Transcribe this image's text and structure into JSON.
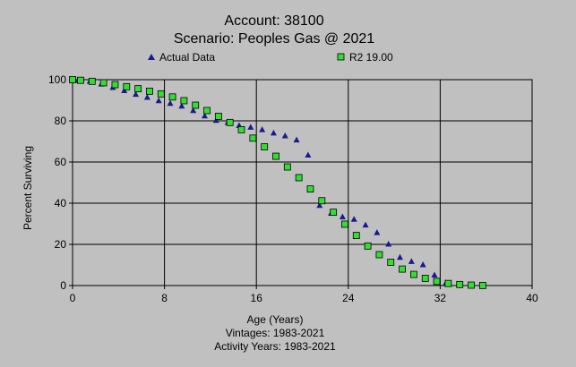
{
  "chart_data": {
    "type": "scatter",
    "title": "Account: 38100",
    "subtitle": "Scenario: Peoples Gas @ 2021",
    "xlabel": "Age (Years)",
    "ylabel": "Percent Surviving",
    "footer_lines": [
      "Vintages: 1983-2021",
      "Activity Years: 1983-2021"
    ],
    "xlim": [
      0,
      40
    ],
    "ylim": [
      0,
      100
    ],
    "x_ticks": [
      0,
      8,
      16,
      24,
      32,
      40
    ],
    "y_ticks": [
      0,
      20,
      40,
      60,
      80,
      100
    ],
    "grid": true,
    "legend_position": "top",
    "series": [
      {
        "name": "Actual Data",
        "marker": "triangle",
        "color": "#1a1a8c",
        "points": [
          [
            0.5,
            99.8
          ],
          [
            1.5,
            99.3
          ],
          [
            2.5,
            98.0
          ],
          [
            3.5,
            96.3
          ],
          [
            4.5,
            94.8
          ],
          [
            5.5,
            93.0
          ],
          [
            6.5,
            91.5
          ],
          [
            7.5,
            89.9
          ],
          [
            8.5,
            88.6
          ],
          [
            9.5,
            87.3
          ],
          [
            10.5,
            85.1
          ],
          [
            11.5,
            82.5
          ],
          [
            12.5,
            80.3
          ],
          [
            13.5,
            79.3
          ],
          [
            14.5,
            77.8
          ],
          [
            15.5,
            77.0
          ],
          [
            16.5,
            75.8
          ],
          [
            17.5,
            74.2
          ],
          [
            18.5,
            72.8
          ],
          [
            19.5,
            70.8
          ],
          [
            20.5,
            63.5
          ],
          [
            21.5,
            39.0
          ],
          [
            22.5,
            35.2
          ],
          [
            23.5,
            33.5
          ],
          [
            24.5,
            32.3
          ],
          [
            25.5,
            29.5
          ],
          [
            26.5,
            25.8
          ],
          [
            27.5,
            20.2
          ],
          [
            28.5,
            13.8
          ],
          [
            29.5,
            11.8
          ],
          [
            30.5,
            10.2
          ],
          [
            31.5,
            5.2
          ],
          [
            32.5,
            1.4
          ]
        ]
      },
      {
        "name": "R2 19.00",
        "marker": "square",
        "color": "#33dd33",
        "points": [
          [
            0,
            100
          ],
          [
            0.7,
            99.7
          ],
          [
            1.7,
            99.2
          ],
          [
            2.7,
            98.5
          ],
          [
            3.7,
            97.6
          ],
          [
            4.7,
            96.6
          ],
          [
            5.7,
            95.6
          ],
          [
            6.7,
            94.4
          ],
          [
            7.7,
            93.1
          ],
          [
            8.7,
            91.6
          ],
          [
            9.7,
            89.8
          ],
          [
            10.7,
            87.6
          ],
          [
            11.7,
            85.0
          ],
          [
            12.7,
            82.2
          ],
          [
            13.7,
            79.2
          ],
          [
            14.7,
            75.7
          ],
          [
            15.7,
            71.6
          ],
          [
            16.7,
            67.4
          ],
          [
            17.7,
            62.8
          ],
          [
            18.7,
            57.6
          ],
          [
            19.7,
            52.4
          ],
          [
            20.7,
            46.9
          ],
          [
            21.7,
            41.2
          ],
          [
            22.7,
            35.6
          ],
          [
            23.7,
            29.8
          ],
          [
            24.7,
            24.3
          ],
          [
            25.7,
            19.2
          ],
          [
            26.7,
            15.0
          ],
          [
            27.7,
            11.3
          ],
          [
            28.7,
            8.0
          ],
          [
            29.7,
            5.4
          ],
          [
            30.7,
            3.5
          ],
          [
            31.7,
            2.0
          ],
          [
            32.7,
            1.0
          ],
          [
            33.7,
            0.5
          ],
          [
            34.7,
            0.2
          ],
          [
            35.7,
            0.05
          ]
        ]
      }
    ]
  }
}
